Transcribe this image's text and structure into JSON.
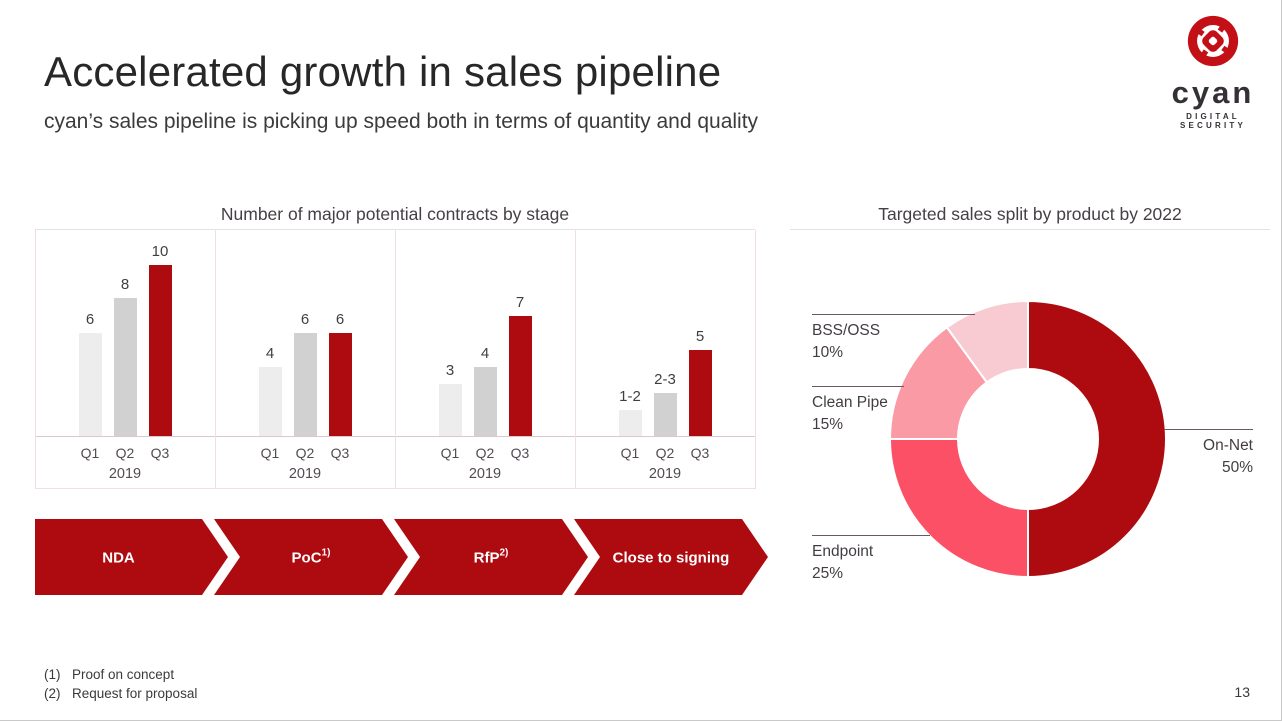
{
  "header": {
    "title": "Accelerated growth in sales pipeline",
    "subtitle": "cyan’s sales pipeline is picking up speed both in terms of quantity and quality"
  },
  "logo": {
    "brand": "cyan",
    "tagline": "DIGITAL SECURITY",
    "red": "#c31017",
    "dark": "#353036"
  },
  "chart_data": [
    {
      "type": "bar",
      "title": "Number of major potential contracts by stage",
      "categories": [
        "Q1",
        "Q2",
        "Q3"
      ],
      "year_label": "2019",
      "groups": [
        {
          "stage": "NDA",
          "values": [
            6,
            8,
            10
          ],
          "labels": [
            "6",
            "8",
            "10"
          ]
        },
        {
          "stage": "PoC",
          "values": [
            4,
            6,
            6
          ],
          "labels": [
            "4",
            "6",
            "6"
          ]
        },
        {
          "stage": "RfP",
          "values": [
            3,
            4,
            7
          ],
          "labels": [
            "3",
            "4",
            "7"
          ]
        },
        {
          "stage": "Close to signing",
          "values": [
            1.5,
            2.5,
            5
          ],
          "labels": [
            "1-2",
            "2-3",
            "5"
          ]
        }
      ],
      "bar_colors": [
        "#ededed",
        "#d1d1d1",
        "#ae0b10"
      ],
      "ylim": [
        0,
        10
      ],
      "grid": false
    },
    {
      "type": "donut",
      "title": "Targeted sales split by product by 2022",
      "slices": [
        {
          "label": "On-Net",
          "pct": 50,
          "pct_label": "50%",
          "color": "#ae0b10"
        },
        {
          "label": "Endpoint",
          "pct": 25,
          "pct_label": "25%",
          "color": "#fb5065"
        },
        {
          "label": "Clean Pipe",
          "pct": 15,
          "pct_label": "15%",
          "color": "#f99aa5"
        },
        {
          "label": "BSS/OSS",
          "pct": 10,
          "pct_label": "10%",
          "color": "#f8cad1"
        }
      ],
      "legend_position": "callout-labels"
    }
  ],
  "process_arrows": [
    {
      "label": "NDA",
      "sup": ""
    },
    {
      "label": "PoC",
      "sup": "1)"
    },
    {
      "label": "RfP",
      "sup": "2)"
    },
    {
      "label": "Close to signing",
      "sup": ""
    }
  ],
  "arrow_color": "#ae0b10",
  "footnotes": [
    {
      "num": "(1)",
      "text": "Proof on concept"
    },
    {
      "num": "(2)",
      "text": "Request for proposal"
    }
  ],
  "page_number": "13"
}
